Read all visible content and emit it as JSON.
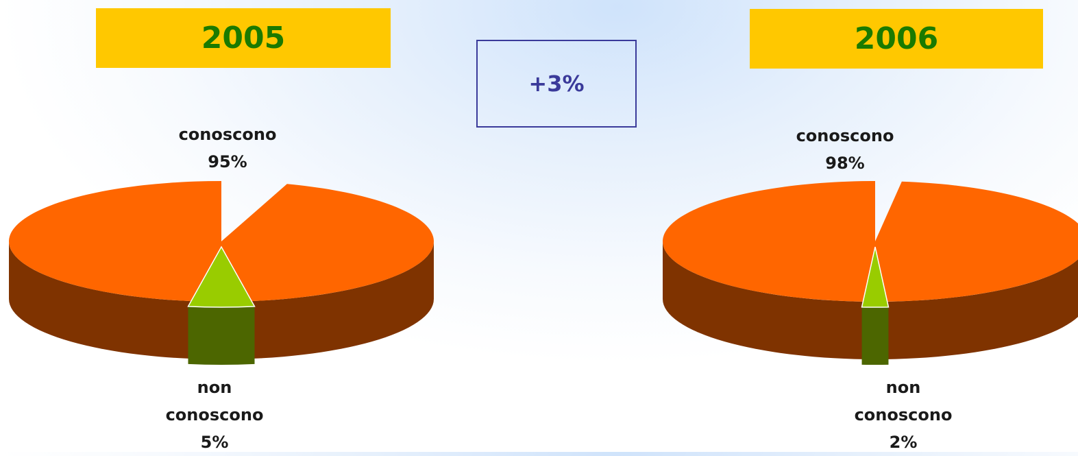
{
  "chart_data": [
    {
      "type": "pie",
      "title": "2005",
      "slices": [
        {
          "name": "conoscono",
          "value": 95,
          "label": "95%",
          "color": "#ff6600",
          "side_color": "#7f3300"
        },
        {
          "name": "non conoscono",
          "value": 5,
          "label": "5%",
          "color": "#99cc00",
          "side_color": "#4c6600"
        }
      ]
    },
    {
      "type": "pie",
      "title": "2006",
      "slices": [
        {
          "name": "conoscono",
          "value": 98,
          "label": "98%",
          "color": "#ff6600",
          "side_color": "#7f3300"
        },
        {
          "name": "non conoscono",
          "value": 2,
          "label": "2%",
          "color": "#99cc00",
          "side_color": "#4c6600"
        }
      ]
    }
  ],
  "change_label": "+3%",
  "labels": {
    "known": "conoscono",
    "unknown_line1": "non",
    "unknown_line2": "conoscono"
  }
}
